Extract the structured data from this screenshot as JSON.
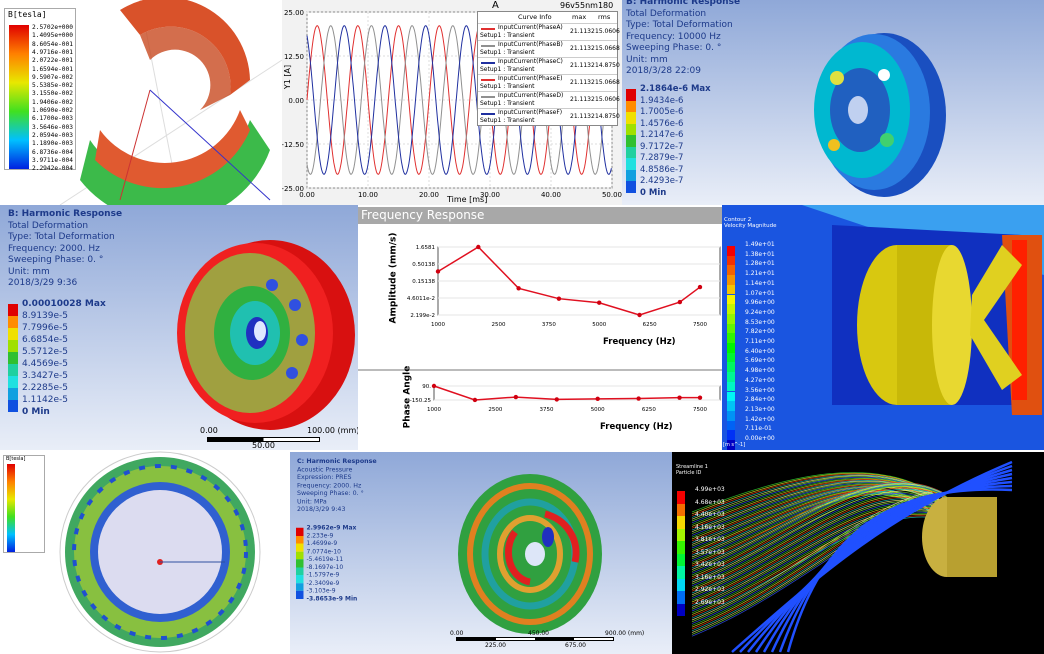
{
  "magnet_panel": {
    "legend_title": "B[tesla]",
    "legend": [
      "2.5702e+000",
      "1.4095e+000",
      "8.6054e-001",
      "4.9716e-001",
      "2.0722e-001",
      "1.6594e-001",
      "9.5907e-002",
      "5.5385e-002",
      "3.1550e-002",
      "1.9406e-002",
      "1.0690e-002",
      "6.1700e-003",
      "3.5646e-003",
      "2.0594e-003",
      "1.1890e-003",
      "6.8736e-004",
      "3.9711e-004",
      "2.2942e-004"
    ]
  },
  "current_chart": {
    "title": "A",
    "project": "96v55nm180",
    "ylabel": "Y1 [A]",
    "xlabel": "Time [ms]",
    "yticks": [
      "25.00",
      "12.50",
      "0.00",
      "-12.50",
      "-25.00"
    ],
    "xticks": [
      "0.00",
      "10.00",
      "20.00",
      "30.00",
      "40.00",
      "50.00"
    ],
    "legend_header": [
      "Curve Info",
      "max",
      "rms"
    ],
    "curves": [
      {
        "name": "InputCurrent(PhaseA)",
        "setup": "Setup1 : Transient",
        "max": "21.1132",
        "rms": "15.0606",
        "color": "#e03030"
      },
      {
        "name": "InputCurrent(PhaseB)",
        "setup": "Setup1 : Transient",
        "max": "21.1132",
        "rms": "15.0668",
        "color": "#909090"
      },
      {
        "name": "InputCurrent(PhaseC)",
        "setup": "Setup1 : Transient",
        "max": "21.1132",
        "rms": "14.8750",
        "color": "#2030a0"
      },
      {
        "name": "InputCurrent(PhaseE)",
        "setup": "Setup1 : Transient",
        "max": "21.1132",
        "rms": "15.0668",
        "color": "#e03030"
      },
      {
        "name": "InputCurrent(PhaseD)",
        "setup": "Setup1 : Transient",
        "max": "21.1132",
        "rms": "15.0606",
        "color": "#909090"
      },
      {
        "name": "InputCurrent(PhaseF)",
        "setup": "Setup1 : Transient",
        "max": "21.1132",
        "rms": "14.8750",
        "color": "#2030a0"
      }
    ]
  },
  "harmonic_top": {
    "info": [
      "B: Harmonic Response",
      "Total Deformation",
      "Type: Total Deformation",
      "Frequency: 10000 Hz",
      "Sweeping Phase: 0. °",
      "Unit: mm",
      "2018/3/28 22:09"
    ],
    "legend": [
      "2.1864e-6 Max",
      "1.9434e-6",
      "1.7005e-6",
      "1.4576e-6",
      "1.2147e-6",
      "9.7172e-7",
      "7.2879e-7",
      "4.8586e-7",
      "2.4293e-7",
      "0 Min"
    ]
  },
  "harmonic_mid": {
    "info": [
      "B: Harmonic Response",
      "Total Deformation",
      "Type: Total Deformation",
      "Frequency: 2000. Hz",
      "Sweeping Phase: 0. °",
      "Unit: mm",
      "2018/3/29 9:36"
    ],
    "legend": [
      "0.00010028 Max",
      "8.9139e-5",
      "7.7996e-5",
      "6.6854e-5",
      "5.5712e-5",
      "4.4569e-5",
      "3.3427e-5",
      "2.2285e-5",
      "1.1142e-5",
      "0 Min"
    ],
    "scale": {
      "left": "0.00",
      "right": "100.00 (mm)",
      "mid": "50.00"
    }
  },
  "freq_response": {
    "title": "Frequency Response",
    "amplitude": {
      "ylabel": "Amplitude (mm/s)",
      "xlabel": "Frequency (Hz)",
      "yticks": [
        "1.6581",
        "0.50138",
        "0.15138",
        "4.6011e-2",
        "2.199e-2"
      ],
      "xticks": [
        "1000",
        "2500",
        "3750",
        "5000",
        "6250",
        "7500"
      ]
    },
    "phase": {
      "ylabel": "Phase Angle",
      "xlabel": "Frequency (Hz)",
      "yticks": [
        "90.",
        "-150.25"
      ],
      "xticks": [
        "1000",
        "2500",
        "3750",
        "5000",
        "6250",
        "7500"
      ]
    }
  },
  "cfd_panel": {
    "legend_title": [
      "Contour 2",
      "Velocity Magnitude"
    ],
    "legend": [
      "1.49e+01",
      "1.38e+01",
      "1.28e+01",
      "1.21e+01",
      "1.14e+01",
      "1.07e+01",
      "9.96e+00",
      "9.24e+00",
      "8.53e+00",
      "7.82e+00",
      "7.11e+00",
      "6.40e+00",
      "5.69e+00",
      "4.98e+00",
      "4.27e+00",
      "3.56e+00",
      "2.84e+00",
      "2.13e+00",
      "1.42e+00",
      "7.11e-01",
      "0.00e+00"
    ],
    "unit": "[m s^-1]"
  },
  "ring_panel": {
    "legend_title": "B[tesla]"
  },
  "acoustic_panel": {
    "info": [
      "C: Harmonic Response",
      "Acoustic Pressure",
      "Expression: PRES",
      "Frequency: 2000. Hz",
      "Sweeping Phase: 0. °",
      "Unit: MPa",
      "2018/3/29 9:43"
    ],
    "legend": [
      "2.9962e-9 Max",
      "2.233e-9",
      "1.4699e-9",
      "7.0774e-10",
      "-5.4619e-11",
      "-8.1697e-10",
      "-1.5797e-9",
      "-2.3409e-9",
      "-3.103e-9",
      "-3.8653e-9 Min"
    ],
    "scale": {
      "left": "0.00",
      "right": "900.00 (mm)",
      "mid": "450.00",
      "q1": "225.00",
      "q3": "675.00"
    }
  },
  "streamline_panel": {
    "legend_title": [
      "Streamline 1",
      "Particle ID"
    ],
    "legend": [
      "4.99e+03",
      "4.68e+03",
      "4.40e+03",
      "4.16e+03",
      "3.81e+03",
      "3.57e+03",
      "3.42e+03",
      "3.16e+03",
      "2.92e+03",
      "2.69e+03"
    ]
  },
  "chart_data": [
    {
      "type": "line",
      "title": "A",
      "xlabel": "Time [ms]",
      "ylabel": "Y1 [A]",
      "xlim": [
        0,
        50
      ],
      "ylim": [
        -25,
        25
      ],
      "grid": true,
      "legend": "top-right",
      "series": [
        {
          "name": "InputCurrent(PhaseA)",
          "amplitude": 21.1132,
          "period_ms": 6.67,
          "phase_deg": 0
        },
        {
          "name": "InputCurrent(PhaseB)",
          "amplitude": 21.1132,
          "period_ms": 6.67,
          "phase_deg": -120
        },
        {
          "name": "InputCurrent(PhaseC)",
          "amplitude": 21.1132,
          "period_ms": 6.67,
          "phase_deg": 120
        }
      ]
    },
    {
      "type": "line",
      "title": "Frequency Response",
      "xlabel": "Frequency (Hz)",
      "ylabel": "Amplitude (mm/s)",
      "yscale": "log",
      "xlim": [
        1000,
        7500
      ],
      "ylim": [
        0.02199,
        1.6581
      ],
      "grid": true,
      "x": [
        1000,
        2000,
        3000,
        4000,
        5000,
        6000,
        7000,
        7500
      ],
      "values": [
        0.35,
        1.6581,
        0.12,
        0.062,
        0.048,
        0.02199,
        0.05,
        0.13
      ]
    },
    {
      "type": "line",
      "xlabel": "Frequency (Hz)",
      "ylabel": "Phase Angle",
      "xlim": [
        1000,
        7500
      ],
      "ylim": [
        -150.25,
        90
      ],
      "x": [
        1000,
        2000,
        3000,
        4000,
        5000,
        6000,
        7000,
        7500
      ],
      "values": [
        90,
        -150,
        -100,
        -140,
        -130,
        -125,
        -110,
        -110
      ]
    }
  ]
}
